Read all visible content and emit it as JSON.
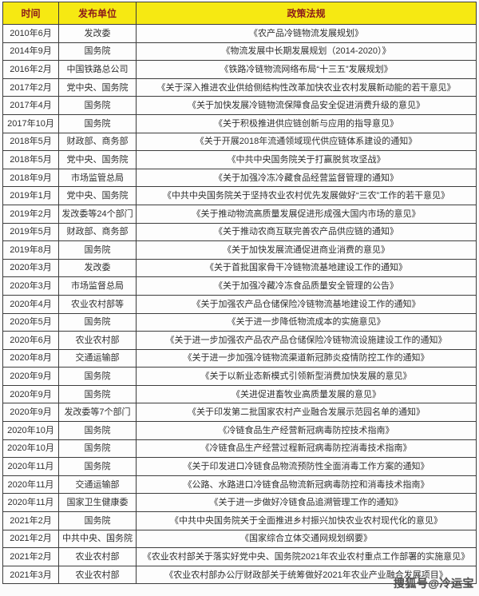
{
  "table": {
    "headers": [
      "时间",
      "发布单位",
      "政策法规"
    ],
    "rows": [
      {
        "date": "2010年6月",
        "org": "发改委",
        "policy": "《农产品冷链物流发展规划》"
      },
      {
        "date": "2014年9月",
        "org": "国务院",
        "policy": "《物流发展中长期发展规划（2014-2020）》"
      },
      {
        "date": "2016年2月",
        "org": "中国铁路总公司",
        "policy": "《铁路冷链物流网络布局“十三五”发展规划》"
      },
      {
        "date": "2017年2月",
        "org": "党中央、国务院",
        "policy": "《关于深入推进农业供给侧结构性改革加快农业农村发展新动能的若干意见》"
      },
      {
        "date": "2017年4月",
        "org": "国务院",
        "policy": "《关于加快发展冷链物流保障食品安全促进消费升级的意见》"
      },
      {
        "date": "2017年10月",
        "org": "国务院",
        "policy": "《关于积极推进供应链创新与应用的指导意见》"
      },
      {
        "date": "2018年5月",
        "org": "财政部、商务部",
        "policy": "《关于开展2018年流通领域现代供应链体系建设的通知》"
      },
      {
        "date": "2018年5月",
        "org": "党中央、国务院",
        "policy": "《中共中央国务院关于打赢脱贫攻坚战》"
      },
      {
        "date": "2018年9月",
        "org": "市场监管总局",
        "policy": "《关于加强冷冻冷藏食品经营监督管理的通知》"
      },
      {
        "date": "2019年1月",
        "org": "党中央、国务院",
        "policy": "《中共中央国务院关于坚持农业农村优先发展做好“三农”工作的若干意见》"
      },
      {
        "date": "2019年2月",
        "org": "发改委等24个部门",
        "policy": "《关于推动物流高质量发展促进形成强大国内市场的意见》"
      },
      {
        "date": "2019年5月",
        "org": "财政部、商务部",
        "policy": "《关于推动农商互联完善农产品供应链的通知》"
      },
      {
        "date": "2019年8月",
        "org": "国务院",
        "policy": "《关于加快发展流通促进商业消费的意见》"
      },
      {
        "date": "2020年3月",
        "org": "发改委",
        "policy": "《关于首批国家骨干冷链物流基地建设工作的通知》"
      },
      {
        "date": "2020年3月",
        "org": "市场监督总局",
        "policy": "《关于加强冷藏冷冻食品质量安全管理的公告》"
      },
      {
        "date": "2020年4月",
        "org": "农业农村部等",
        "policy": "《关于加强农产品仓储保险冷链物流基地建设工作的通知》"
      },
      {
        "date": "2020年5月",
        "org": "国务院",
        "policy": "《关于进一步降低物流成本的实施意见》"
      },
      {
        "date": "2020年6月",
        "org": "农业农村部",
        "policy": "《关于进一步加强农产品农产品仓储保险冷链物流设施建设工作的通知》"
      },
      {
        "date": "2020年8月",
        "org": "交通运输部",
        "policy": "《关于进一步加强冷链物流渠道新冠肺炎疫情防控工作的通知》"
      },
      {
        "date": "2020年9月",
        "org": "国务院",
        "policy": "《关于以新业态新模式引领新型消费加快发展的意见》"
      },
      {
        "date": "2020年9月",
        "org": "国务院",
        "policy": "《关进促进畜牧业高质量发展的意见》"
      },
      {
        "date": "2020年9月",
        "org": "发改委等7个部门",
        "policy": "《关于印发第二批国家农村产业融合发展示范园名单的通知》"
      },
      {
        "date": "2020年10月",
        "org": "国务院",
        "policy": "《冷链食品生产经营新冠病毒防控技术指南》"
      },
      {
        "date": "2020年10月",
        "org": "国务院",
        "policy": "《冷链食品生产经营过程新冠病毒防控消毒技术指南》"
      },
      {
        "date": "2020年11月",
        "org": "国务院",
        "policy": "《关于印发进口冷链食品物流预防性全面消毒工作方案的通知》"
      },
      {
        "date": "2020年11月",
        "org": "交通运输部",
        "policy": "《公路、水路进口冷链食品物流新冠病毒防控和消毒技术指南》"
      },
      {
        "date": "2020年11月",
        "org": "国家卫生健康委",
        "policy": "《关于进一步做好冷链食品追溯管理工作的通知》"
      },
      {
        "date": "2021年2月",
        "org": "国务院",
        "policy": "《中共中央国务院关于全面推进乡村振兴加快农业农村现代化的意见》"
      },
      {
        "date": "2021年2月",
        "org": "中共中央、国务院",
        "policy": "《国家综合立体交通网规划纲要》"
      },
      {
        "date": "2021年2月",
        "org": "农业农村部",
        "policy": "《农业农村部关于落实好党中央、国务院2021年农业农村重点工作部署的实施意见》"
      },
      {
        "date": "2021年3月",
        "org": "农业农村部",
        "policy": "《农业农村部办公厅财政部关于统筹做好2021年农业产业融合发展项目》"
      }
    ]
  },
  "watermark": "搜狐号@冷运宝",
  "colors": {
    "header_bg": "#f6e912",
    "header_text": "#8b1a1a",
    "border": "#3d3d3d",
    "cell_text": "#2f2f2f"
  }
}
